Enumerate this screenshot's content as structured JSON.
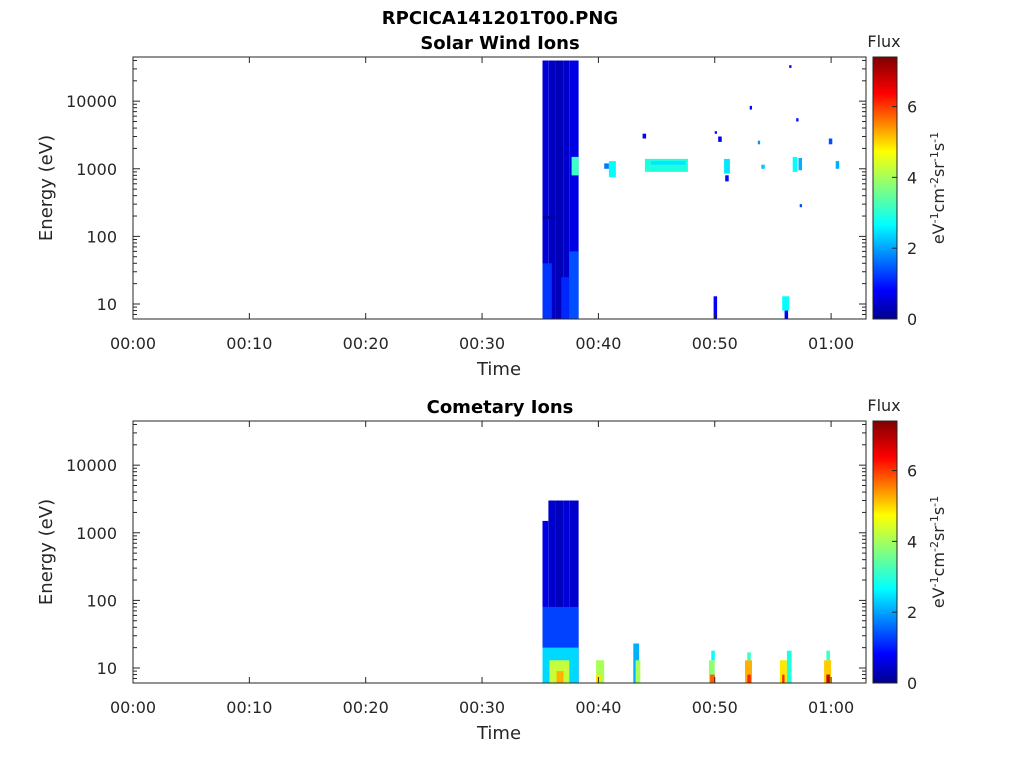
{
  "figure": {
    "title": "RPCICA141201T00.PNG"
  },
  "colorscale": [
    "#00008f",
    "#0000ff",
    "#0080ff",
    "#00ffff",
    "#80ff80",
    "#ffff00",
    "#ff8000",
    "#ff0000",
    "#800000"
  ],
  "chart_data": [
    {
      "type": "heatmap",
      "title": "Solar Wind Ions",
      "xlabel": "Time",
      "ylabel": "Energy (eV)",
      "y_scale": "log",
      "xlim_minutes": [
        0,
        63
      ],
      "ylim": [
        6,
        45000
      ],
      "x_ticks": [
        {
          "v": 0,
          "label": "00:00"
        },
        {
          "v": 10,
          "label": "00:10"
        },
        {
          "v": 20,
          "label": "00:20"
        },
        {
          "v": 30,
          "label": "00:30"
        },
        {
          "v": 40,
          "label": "00:40"
        },
        {
          "v": 50,
          "label": "00:50"
        },
        {
          "v": 60,
          "label": "01:00"
        }
      ],
      "y_ticks": [
        {
          "v": 10,
          "label": "10"
        },
        {
          "v": 100,
          "label": "100"
        },
        {
          "v": 1000,
          "label": "1000"
        },
        {
          "v": 10000,
          "label": "10000"
        }
      ],
      "colorbar": {
        "title": "Flux",
        "label": "eV-1cm-2sr-1s-1",
        "label_parts": [
          "eV",
          "-1",
          "cm",
          "-2",
          "sr",
          "-1",
          "s",
          "-1"
        ],
        "range": [
          0,
          7.4
        ],
        "ticks": [
          {
            "v": 0,
            "label": "0"
          },
          {
            "v": 2,
            "label": "2"
          },
          {
            "v": 4,
            "label": "4"
          },
          {
            "v": 6,
            "label": "6"
          }
        ]
      },
      "cells": [
        {
          "t0": 35.2,
          "t1": 35.7,
          "e0": 6,
          "e1": 40000,
          "z": 0.6
        },
        {
          "t0": 35.7,
          "t1": 36.3,
          "e0": 6,
          "e1": 40000,
          "z": 0.45
        },
        {
          "t0": 36.3,
          "t1": 37.0,
          "e0": 6,
          "e1": 40000,
          "z": 0.35
        },
        {
          "t0": 37.0,
          "t1": 37.5,
          "e0": 6,
          "e1": 40000,
          "z": 0.5
        },
        {
          "t0": 37.5,
          "t1": 38.3,
          "e0": 6,
          "e1": 40000,
          "z": 0.7
        },
        {
          "t0": 35.2,
          "t1": 36.0,
          "e0": 6,
          "e1": 40,
          "z": 1.3
        },
        {
          "t0": 36.8,
          "t1": 37.5,
          "e0": 6,
          "e1": 25,
          "z": 1.2
        },
        {
          "t0": 37.5,
          "t1": 38.3,
          "e0": 6,
          "e1": 60,
          "z": 1.5
        },
        {
          "t0": 37.7,
          "t1": 38.3,
          "e0": 800,
          "e1": 1500,
          "z": 3.2
        },
        {
          "t0": 35.2,
          "t1": 36.3,
          "e0": 180,
          "e1": 200,
          "z": 0.25
        },
        {
          "t0": 40.5,
          "t1": 40.9,
          "e0": 1000,
          "e1": 1200,
          "z": 1.8
        },
        {
          "t0": 40.9,
          "t1": 41.5,
          "e0": 750,
          "e1": 1300,
          "z": 2.8
        },
        {
          "t0": 44.0,
          "t1": 47.7,
          "e0": 900,
          "e1": 1400,
          "z": 3.0
        },
        {
          "t0": 44.5,
          "t1": 47.5,
          "e0": 1150,
          "e1": 1300,
          "z": 2.6
        },
        {
          "t0": 43.8,
          "t1": 44.1,
          "e0": 2800,
          "e1": 3300,
          "z": 0.9
        },
        {
          "t0": 50.8,
          "t1": 51.3,
          "e0": 850,
          "e1": 1400,
          "z": 2.6
        },
        {
          "t0": 50.9,
          "t1": 51.2,
          "e0": 650,
          "e1": 800,
          "z": 1.0
        },
        {
          "t0": 50.0,
          "t1": 50.2,
          "e0": 3300,
          "e1": 3600,
          "z": 1.0
        },
        {
          "t0": 50.3,
          "t1": 50.6,
          "e0": 2500,
          "e1": 3000,
          "z": 0.8
        },
        {
          "t0": 54.0,
          "t1": 54.3,
          "e0": 1000,
          "e1": 1150,
          "z": 2.4
        },
        {
          "t0": 53.0,
          "t1": 53.2,
          "e0": 7500,
          "e1": 8500,
          "z": 1.0
        },
        {
          "t0": 53.7,
          "t1": 53.9,
          "e0": 2300,
          "e1": 2600,
          "z": 2.0
        },
        {
          "t0": 56.7,
          "t1": 57.1,
          "e0": 900,
          "e1": 1500,
          "z": 2.8
        },
        {
          "t0": 57.2,
          "t1": 57.5,
          "e0": 950,
          "e1": 1450,
          "z": 2.2
        },
        {
          "t0": 56.4,
          "t1": 56.6,
          "e0": 31000,
          "e1": 34000,
          "z": 0.8
        },
        {
          "t0": 57.0,
          "t1": 57.2,
          "e0": 5000,
          "e1": 5600,
          "z": 1.0
        },
        {
          "t0": 57.3,
          "t1": 57.5,
          "e0": 270,
          "e1": 300,
          "z": 1.5
        },
        {
          "t0": 59.8,
          "t1": 60.1,
          "e0": 2300,
          "e1": 2800,
          "z": 1.5
        },
        {
          "t0": 60.4,
          "t1": 60.7,
          "e0": 1000,
          "e1": 1300,
          "z": 2.2
        },
        {
          "t0": 49.9,
          "t1": 50.2,
          "e0": 6,
          "e1": 13,
          "z": 0.9
        },
        {
          "t0": 55.8,
          "t1": 56.4,
          "e0": 8,
          "e1": 13,
          "z": 2.8
        },
        {
          "t0": 56.0,
          "t1": 56.3,
          "e0": 6,
          "e1": 8,
          "z": 0.9
        }
      ]
    },
    {
      "type": "heatmap",
      "title": "Cometary Ions",
      "xlabel": "Time",
      "ylabel": "Energy (eV)",
      "y_scale": "log",
      "xlim_minutes": [
        0,
        63
      ],
      "ylim": [
        6,
        45000
      ],
      "x_ticks": [
        {
          "v": 0,
          "label": "00:00"
        },
        {
          "v": 10,
          "label": "00:10"
        },
        {
          "v": 20,
          "label": "00:20"
        },
        {
          "v": 30,
          "label": "00:30"
        },
        {
          "v": 40,
          "label": "00:40"
        },
        {
          "v": 50,
          "label": "00:50"
        },
        {
          "v": 60,
          "label": "01:00"
        }
      ],
      "y_ticks": [
        {
          "v": 10,
          "label": "10"
        },
        {
          "v": 100,
          "label": "100"
        },
        {
          "v": 1000,
          "label": "1000"
        },
        {
          "v": 10000,
          "label": "10000"
        }
      ],
      "colorbar": {
        "title": "Flux",
        "label": "eV-1cm-2sr-1s-1",
        "label_parts": [
          "eV",
          "-1",
          "cm",
          "-2",
          "sr",
          "-1",
          "s",
          "-1"
        ],
        "range": [
          0,
          7.4
        ],
        "ticks": [
          {
            "v": 0,
            "label": "0"
          },
          {
            "v": 2,
            "label": "2"
          },
          {
            "v": 4,
            "label": "4"
          },
          {
            "v": 6,
            "label": "6"
          }
        ]
      },
      "cells": [
        {
          "t0": 35.2,
          "t1": 35.7,
          "e0": 6,
          "e1": 1500,
          "z": 0.7
        },
        {
          "t0": 35.7,
          "t1": 36.3,
          "e0": 6,
          "e1": 3000,
          "z": 0.5
        },
        {
          "t0": 36.3,
          "t1": 37.0,
          "e0": 6,
          "e1": 3000,
          "z": 0.4
        },
        {
          "t0": 37.0,
          "t1": 37.5,
          "e0": 6,
          "e1": 3000,
          "z": 0.6
        },
        {
          "t0": 37.5,
          "t1": 38.3,
          "e0": 6,
          "e1": 3000,
          "z": 0.5
        },
        {
          "t0": 35.2,
          "t1": 38.3,
          "e0": 6,
          "e1": 80,
          "z": 1.4
        },
        {
          "t0": 35.2,
          "t1": 38.3,
          "e0": 6,
          "e1": 20,
          "z": 2.5
        },
        {
          "t0": 35.8,
          "t1": 37.5,
          "e0": 6,
          "e1": 13,
          "z": 4.2
        },
        {
          "t0": 36.4,
          "t1": 37.0,
          "e0": 6,
          "e1": 9,
          "z": 5.2
        },
        {
          "t0": 39.8,
          "t1": 40.5,
          "e0": 6,
          "e1": 13,
          "z": 4.0
        },
        {
          "t0": 39.8,
          "t1": 40.2,
          "e0": 6,
          "e1": 8,
          "z": 4.8
        },
        {
          "t0": 43.0,
          "t1": 43.5,
          "e0": 6,
          "e1": 23,
          "z": 2.2
        },
        {
          "t0": 43.2,
          "t1": 43.6,
          "e0": 6,
          "e1": 13,
          "z": 4.0
        },
        {
          "t0": 49.5,
          "t1": 50.0,
          "e0": 6,
          "e1": 13,
          "z": 3.8
        },
        {
          "t0": 49.7,
          "t1": 50.0,
          "e0": 13,
          "e1": 18,
          "z": 2.8
        },
        {
          "t0": 49.6,
          "t1": 50.0,
          "e0": 6,
          "e1": 8,
          "z": 5.8
        },
        {
          "t0": 52.6,
          "t1": 53.2,
          "e0": 6,
          "e1": 13,
          "z": 5.2
        },
        {
          "t0": 52.8,
          "t1": 53.1,
          "e0": 6,
          "e1": 8,
          "z": 6.2
        },
        {
          "t0": 52.8,
          "t1": 53.1,
          "e0": 13,
          "e1": 17,
          "z": 3.2
        },
        {
          "t0": 55.6,
          "t1": 56.2,
          "e0": 6,
          "e1": 13,
          "z": 4.8
        },
        {
          "t0": 55.8,
          "t1": 56.0,
          "e0": 6,
          "e1": 8,
          "z": 6.2
        },
        {
          "t0": 56.2,
          "t1": 56.6,
          "e0": 6,
          "e1": 18,
          "z": 3.0
        },
        {
          "t0": 59.4,
          "t1": 60.0,
          "e0": 6,
          "e1": 13,
          "z": 5.0
        },
        {
          "t0": 59.6,
          "t1": 59.9,
          "e0": 6,
          "e1": 8,
          "z": 6.8
        },
        {
          "t0": 59.6,
          "t1": 59.9,
          "e0": 13,
          "e1": 18,
          "z": 3.2
        }
      ]
    }
  ]
}
